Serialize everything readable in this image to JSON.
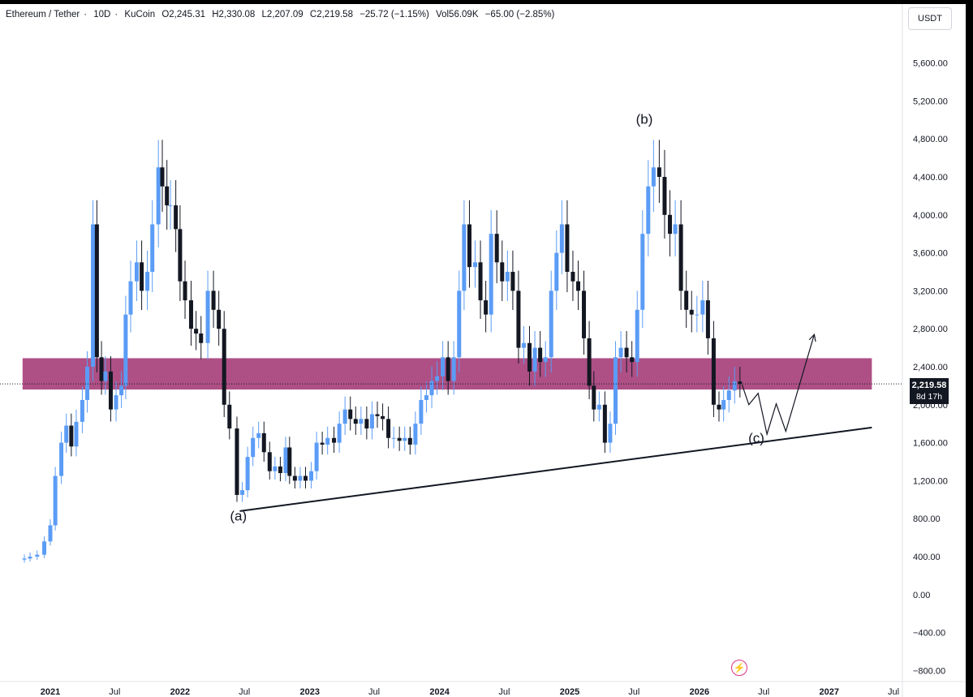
{
  "header": {
    "symbol": "Ethereum / Tether",
    "interval": "10D",
    "exchange": "KuCoin",
    "open": "O2,245.31",
    "high": "H2,330.08",
    "low": "L2,207.09",
    "close": "C2,219.58",
    "change": "−25.72 (−1.15%)",
    "volume": "Vol56.09K",
    "vol_change": "−65.00 (−2.85%)",
    "separator": "·"
  },
  "currency_button": "USDT",
  "price_tag": {
    "price": "2,219.58",
    "countdown": "8d 17h"
  },
  "colors": {
    "up": "#5b9cf6",
    "down": "#131722",
    "zone": "#9c2a6a",
    "up_tag": "#131722",
    "accent": "#d63384"
  },
  "icons": {
    "bolt": "lightning-bolt-icon"
  },
  "chart_data": {
    "type": "candlestick",
    "title": "Ethereum / Tether · 10D · KuCoin",
    "ylabel": "USDT",
    "ylim": [
      -900,
      6000
    ],
    "y_ticks": [
      5600,
      5200,
      4800,
      4400,
      4000,
      3600,
      3200,
      2800,
      2400,
      2000,
      1600,
      1200,
      800,
      400,
      0,
      -400,
      -800
    ],
    "y_tick_labels": [
      "5,600.00",
      "5,200.00",
      "4,800.00",
      "4,400.00",
      "4,000.00",
      "3,600.00",
      "3,200.00",
      "2,800.00",
      "2,400.00",
      "2,000.00",
      "1,600.00",
      "1,200.00",
      "800.00",
      "400.00",
      "0.00",
      "−400.00",
      "−800.00"
    ],
    "x_ticks": [
      {
        "date": "2021-01-01",
        "label": "2021",
        "bold": true
      },
      {
        "date": "2021-07-01",
        "label": "Jul",
        "bold": false
      },
      {
        "date": "2022-01-01",
        "label": "2022",
        "bold": true
      },
      {
        "date": "2022-07-01",
        "label": "Jul",
        "bold": false
      },
      {
        "date": "2023-01-01",
        "label": "2023",
        "bold": true
      },
      {
        "date": "2023-07-01",
        "label": "Jul",
        "bold": false
      },
      {
        "date": "2024-01-01",
        "label": "2024",
        "bold": true
      },
      {
        "date": "2024-07-01",
        "label": "Jul",
        "bold": false
      },
      {
        "date": "2025-01-01",
        "label": "2025",
        "bold": true
      },
      {
        "date": "2025-07-01",
        "label": "Jul",
        "bold": false
      },
      {
        "date": "2026-01-01",
        "label": "2026",
        "bold": true
      },
      {
        "date": "2026-07-01",
        "label": "Jul",
        "bold": false
      },
      {
        "date": "2027-01-01",
        "label": "2027",
        "bold": true
      },
      {
        "date": "2027-07-01",
        "label": "Jul",
        "bold": false
      }
    ],
    "last_price": 2219.58,
    "resistance_zone": {
      "from": 2160,
      "to": 2490,
      "start": "2020-10-15",
      "end": "2027-05-01"
    },
    "trendline": {
      "start": [
        "2022-06-18",
        880
      ],
      "end": [
        "2027-05-01",
        1760
      ]
    },
    "projection": [
      [
        "2026-05-01",
        2210
      ],
      [
        "2026-05-20",
        2000
      ],
      [
        "2026-06-15",
        2120
      ],
      [
        "2026-07-10",
        1690
      ],
      [
        "2026-08-05",
        2010
      ],
      [
        "2026-09-01",
        1720
      ],
      [
        "2026-11-20",
        2740
      ]
    ],
    "annotations": [
      {
        "text": "(a)",
        "date": "2022-06-14",
        "value": 780
      },
      {
        "text": "(b)",
        "date": "2025-07-30",
        "value": 4960
      },
      {
        "text": "(c)",
        "date": "2026-06-10",
        "value": 1600
      }
    ],
    "closes": [
      [
        "2020-10-20",
        380
      ],
      [
        "2020-11-05",
        400
      ],
      [
        "2020-11-25",
        420
      ],
      [
        "2020-12-15",
        560
      ],
      [
        "2021-01-01",
        730
      ],
      [
        "2021-01-15",
        1250
      ],
      [
        "2021-02-01",
        1600
      ],
      [
        "2021-02-15",
        1780
      ],
      [
        "2021-03-01",
        1560
      ],
      [
        "2021-03-15",
        1820
      ],
      [
        "2021-04-01",
        2050
      ],
      [
        "2021-04-15",
        2400
      ],
      [
        "2021-05-01",
        3900
      ],
      [
        "2021-05-12",
        2500
      ],
      [
        "2021-05-25",
        2250
      ],
      [
        "2021-06-05",
        2350
      ],
      [
        "2021-06-20",
        1950
      ],
      [
        "2021-07-05",
        2100
      ],
      [
        "2021-07-20",
        2200
      ],
      [
        "2021-08-01",
        2950
      ],
      [
        "2021-08-15",
        3300
      ],
      [
        "2021-09-01",
        3500
      ],
      [
        "2021-09-15",
        3200
      ],
      [
        "2021-10-01",
        3400
      ],
      [
        "2021-10-15",
        3900
      ],
      [
        "2021-11-01",
        4500
      ],
      [
        "2021-11-12",
        4300
      ],
      [
        "2021-11-25",
        4100
      ],
      [
        "2021-12-05",
        4100
      ],
      [
        "2021-12-20",
        3850
      ],
      [
        "2022-01-01",
        3300
      ],
      [
        "2022-01-15",
        3100
      ],
      [
        "2022-02-01",
        2800
      ],
      [
        "2022-02-15",
        2750
      ],
      [
        "2022-03-01",
        2650
      ],
      [
        "2022-03-20",
        3200
      ],
      [
        "2022-04-05",
        3000
      ],
      [
        "2022-04-20",
        2800
      ],
      [
        "2022-05-05",
        2000
      ],
      [
        "2022-05-20",
        1750
      ],
      [
        "2022-06-10",
        1050
      ],
      [
        "2022-06-25",
        1100
      ],
      [
        "2022-07-10",
        1450
      ],
      [
        "2022-07-25",
        1650
      ],
      [
        "2022-08-10",
        1700
      ],
      [
        "2022-08-25",
        1500
      ],
      [
        "2022-09-10",
        1300
      ],
      [
        "2022-09-25",
        1350
      ],
      [
        "2022-10-10",
        1280
      ],
      [
        "2022-10-25",
        1550
      ],
      [
        "2022-11-05",
        1250
      ],
      [
        "2022-11-20",
        1200
      ],
      [
        "2022-12-05",
        1250
      ],
      [
        "2022-12-20",
        1200
      ],
      [
        "2023-01-05",
        1300
      ],
      [
        "2023-01-20",
        1600
      ],
      [
        "2023-02-05",
        1580
      ],
      [
        "2023-02-20",
        1650
      ],
      [
        "2023-03-10",
        1600
      ],
      [
        "2023-03-25",
        1800
      ],
      [
        "2023-04-10",
        1950
      ],
      [
        "2023-04-25",
        1850
      ],
      [
        "2023-05-10",
        1800
      ],
      [
        "2023-05-25",
        1850
      ],
      [
        "2023-06-10",
        1750
      ],
      [
        "2023-06-25",
        1900
      ],
      [
        "2023-07-10",
        1880
      ],
      [
        "2023-07-25",
        1850
      ],
      [
        "2023-08-10",
        1650
      ],
      [
        "2023-08-25",
        1650
      ],
      [
        "2023-09-10",
        1620
      ],
      [
        "2023-09-25",
        1650
      ],
      [
        "2023-10-10",
        1580
      ],
      [
        "2023-10-25",
        1800
      ],
      [
        "2023-11-10",
        2050
      ],
      [
        "2023-11-25",
        2100
      ],
      [
        "2023-12-10",
        2250
      ],
      [
        "2023-12-25",
        2300
      ],
      [
        "2024-01-10",
        2500
      ],
      [
        "2024-01-25",
        2250
      ],
      [
        "2024-02-10",
        2500
      ],
      [
        "2024-02-25",
        3200
      ],
      [
        "2024-03-10",
        3900
      ],
      [
        "2024-03-25",
        3450
      ],
      [
        "2024-04-10",
        3500
      ],
      [
        "2024-04-25",
        3100
      ],
      [
        "2024-05-10",
        2950
      ],
      [
        "2024-05-25",
        3800
      ],
      [
        "2024-06-10",
        3500
      ],
      [
        "2024-06-25",
        3300
      ],
      [
        "2024-07-10",
        3400
      ],
      [
        "2024-07-25",
        3200
      ],
      [
        "2024-08-10",
        2600
      ],
      [
        "2024-08-25",
        2650
      ],
      [
        "2024-09-10",
        2350
      ],
      [
        "2024-09-25",
        2600
      ],
      [
        "2024-10-10",
        2450
      ],
      [
        "2024-10-25",
        2500
      ],
      [
        "2024-11-10",
        3200
      ],
      [
        "2024-11-25",
        3600
      ],
      [
        "2024-12-10",
        3900
      ],
      [
        "2024-12-25",
        3400
      ],
      [
        "2025-01-10",
        3300
      ],
      [
        "2025-01-25",
        3200
      ],
      [
        "2025-02-10",
        2700
      ],
      [
        "2025-02-25",
        2200
      ],
      [
        "2025-03-10",
        1950
      ],
      [
        "2025-03-25",
        2000
      ],
      [
        "2025-04-10",
        1600
      ],
      [
        "2025-04-25",
        1800
      ],
      [
        "2025-05-10",
        2500
      ],
      [
        "2025-05-25",
        2600
      ],
      [
        "2025-06-10",
        2500
      ],
      [
        "2025-06-25",
        2450
      ],
      [
        "2025-07-10",
        3000
      ],
      [
        "2025-07-25",
        3800
      ],
      [
        "2025-08-10",
        4300
      ],
      [
        "2025-08-25",
        4500
      ],
      [
        "2025-09-10",
        4400
      ],
      [
        "2025-09-25",
        4000
      ],
      [
        "2025-10-10",
        3800
      ],
      [
        "2025-10-25",
        3900
      ],
      [
        "2025-11-10",
        3200
      ],
      [
        "2025-11-25",
        3000
      ],
      [
        "2025-12-10",
        2950
      ],
      [
        "2025-12-25",
        2950
      ],
      [
        "2026-01-10",
        3100
      ],
      [
        "2026-01-25",
        2700
      ],
      [
        "2026-02-10",
        2000
      ],
      [
        "2026-02-25",
        1950
      ],
      [
        "2026-03-10",
        2050
      ],
      [
        "2026-03-25",
        2150
      ],
      [
        "2026-04-10",
        2245
      ],
      [
        "2026-04-25",
        2219.58
      ]
    ]
  }
}
